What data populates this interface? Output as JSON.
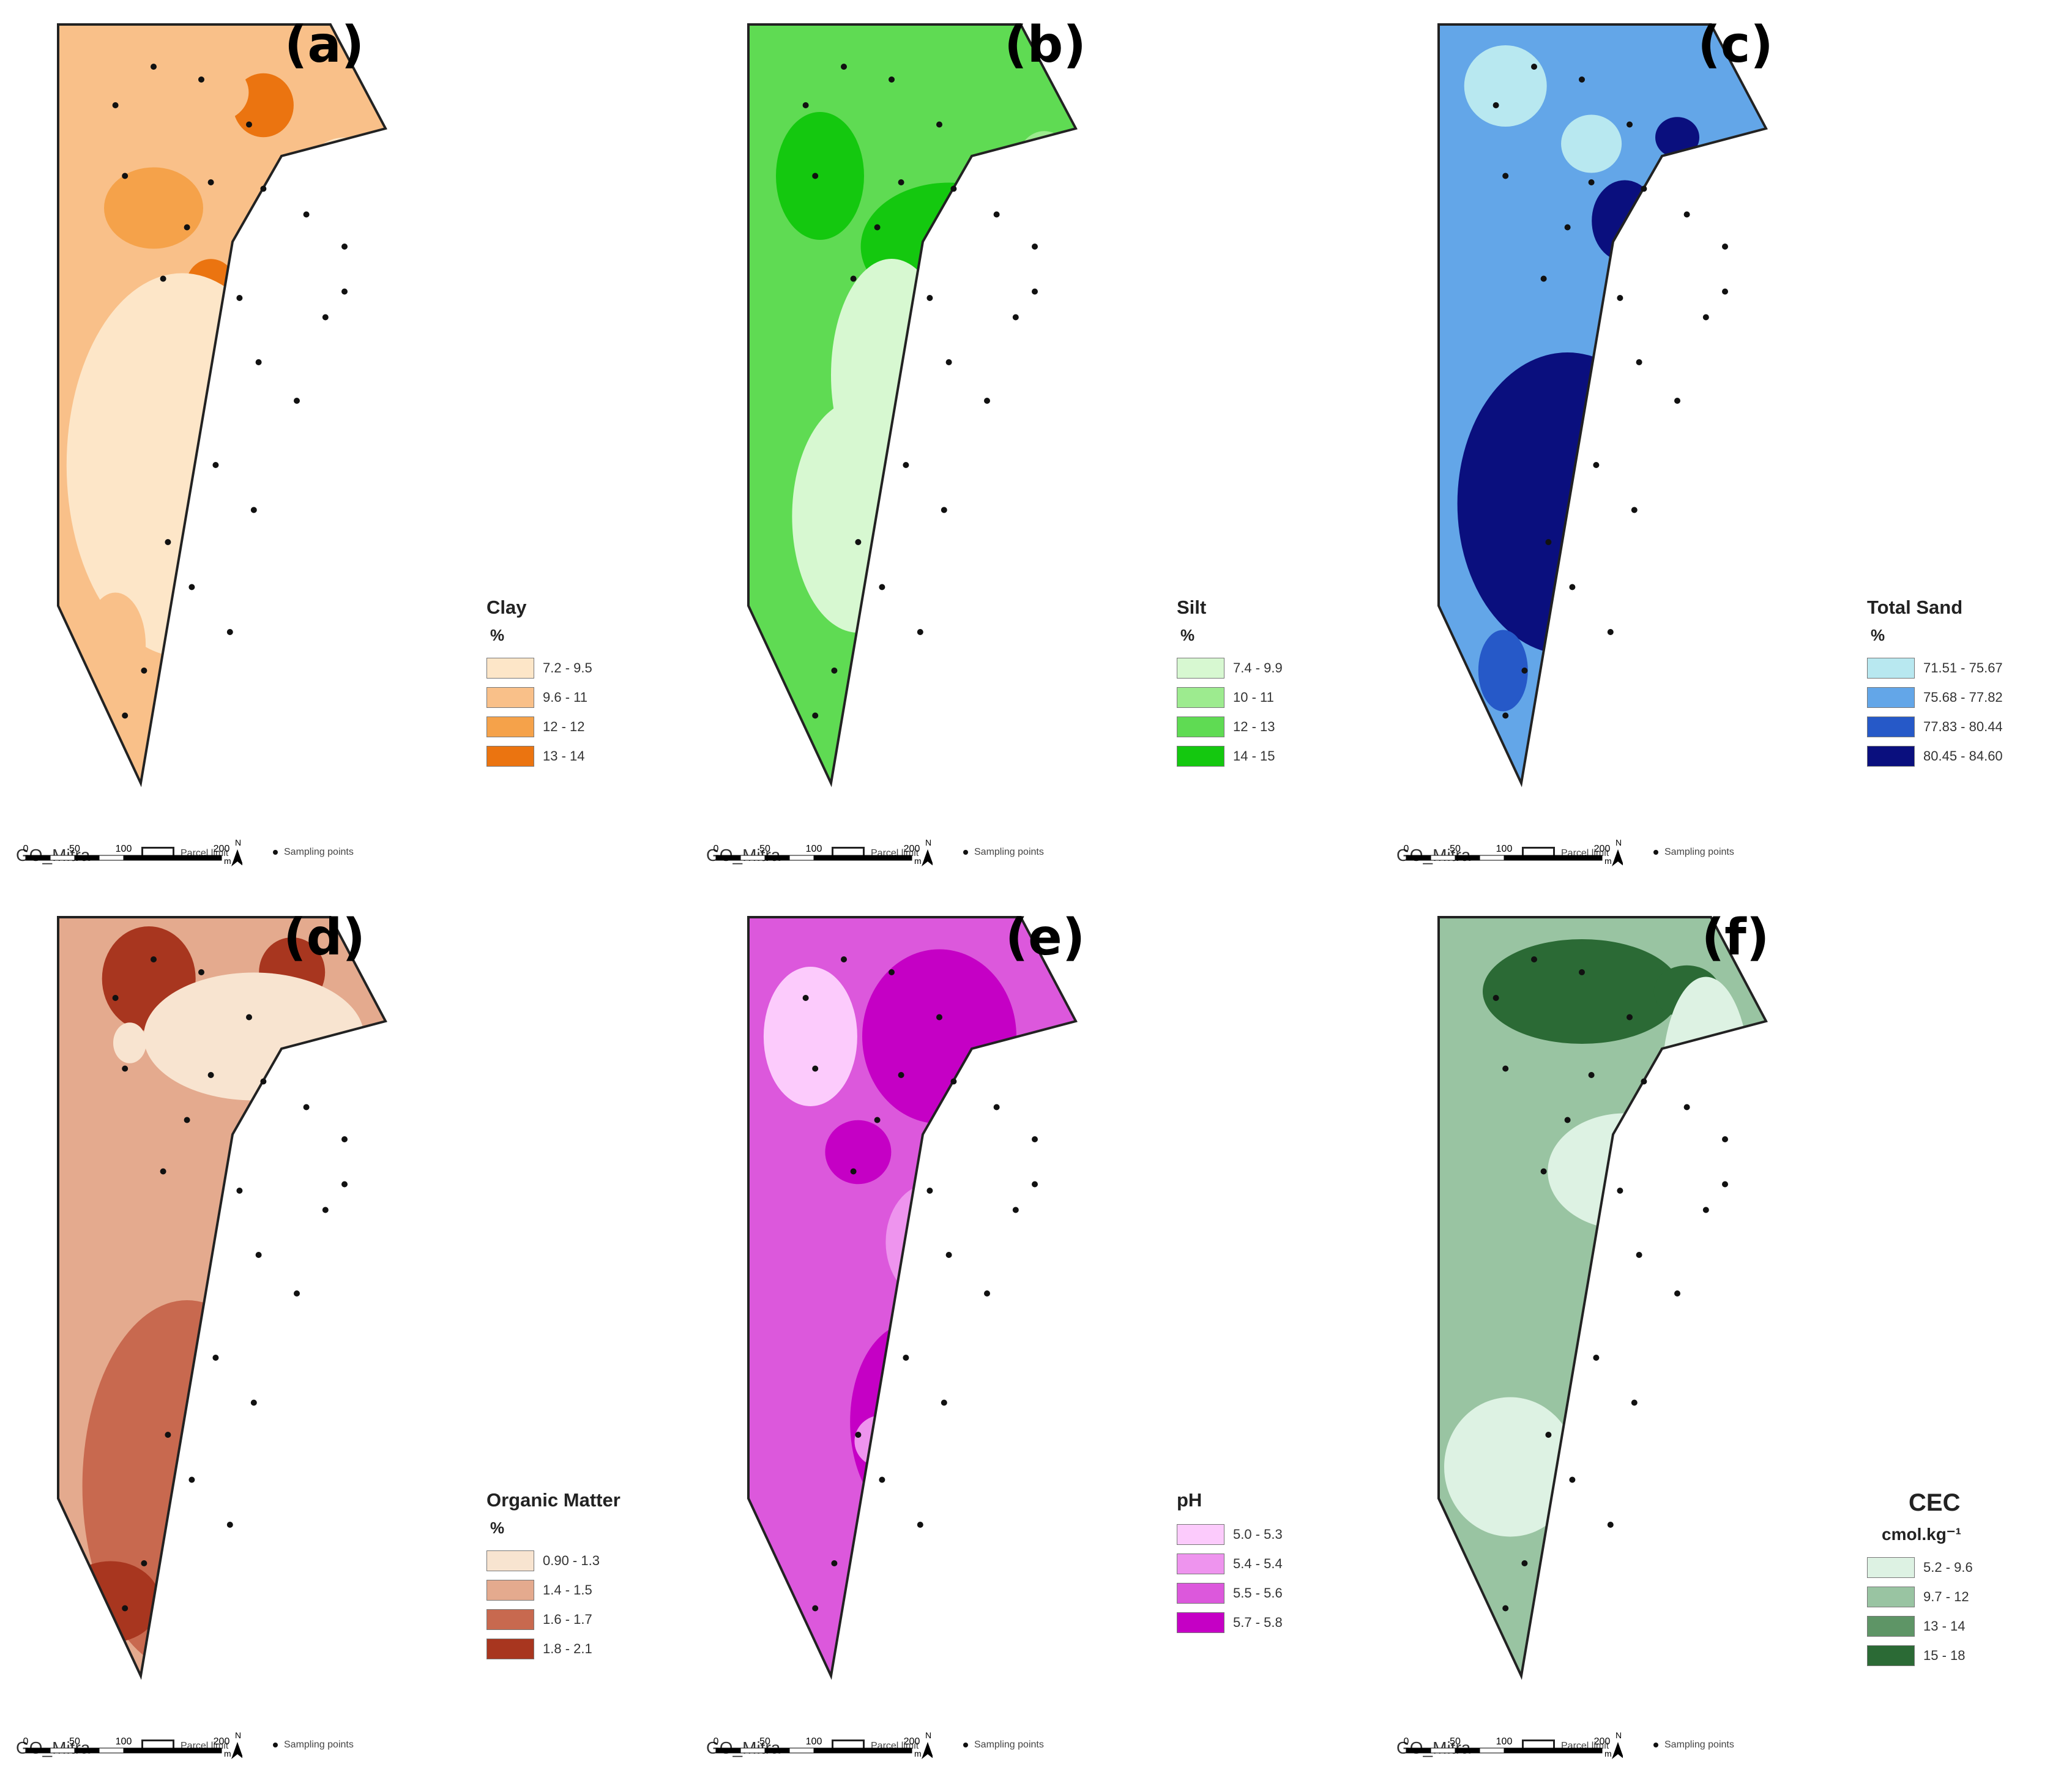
{
  "figure": {
    "panels": [
      {
        "id": "a",
        "label": "(a)",
        "legend": {
          "title": "Clay",
          "unit": "%",
          "classes": [
            {
              "label": "7.2 - 9.5",
              "color": "#FDE6C8"
            },
            {
              "label": "9.6 - 11",
              "color": "#F9C089"
            },
            {
              "label": "12 - 12",
              "color": "#F5A24A"
            },
            {
              "label": "13 - 14",
              "color": "#EB7410"
            }
          ]
        }
      },
      {
        "id": "b",
        "label": "(b)",
        "legend": {
          "title": "Silt",
          "unit": "%",
          "classes": [
            {
              "label": "7.4 - 9.9",
              "color": "#D7F8D1"
            },
            {
              "label": "10 - 11",
              "color": "#9DEB8F"
            },
            {
              "label": "12 - 13",
              "color": "#5FDB53"
            },
            {
              "label": "14 - 15",
              "color": "#14C80F"
            }
          ]
        }
      },
      {
        "id": "c",
        "label": "(c)",
        "legend": {
          "title": "Total Sand",
          "unit": "%",
          "classes": [
            {
              "label": "71.51 - 75.67",
              "color": "#B8E8F0"
            },
            {
              "label": "75.68 - 77.82",
              "color": "#63A6E8"
            },
            {
              "label": "77.83 - 80.44",
              "color": "#2659C8"
            },
            {
              "label": "80.45 - 84.60",
              "color": "#0A0F7E"
            }
          ]
        }
      },
      {
        "id": "d",
        "label": "(d)",
        "legend": {
          "title": "Organic Matter",
          "unit": "%",
          "classes": [
            {
              "label": "0.90 - 1.3",
              "color": "#F8E4D0"
            },
            {
              "label": "1.4 - 1.5",
              "color": "#E4AA8E"
            },
            {
              "label": "1.6 - 1.7",
              "color": "#C8694F"
            },
            {
              "label": "1.8 - 2.1",
              "color": "#A8361F"
            }
          ]
        }
      },
      {
        "id": "e",
        "label": "(e)",
        "legend": {
          "title": "pH",
          "unit": "",
          "classes": [
            {
              "label": "5.0 - 5.3",
              "color": "#FCCBFC"
            },
            {
              "label": "5.4 - 5.4",
              "color": "#EE94EE"
            },
            {
              "label": "5.5 - 5.6",
              "color": "#DC58DC"
            },
            {
              "label": "5.7 - 5.8",
              "color": "#C500C5"
            }
          ]
        }
      },
      {
        "id": "f",
        "label": "(f)",
        "legend": {
          "title": "CEC",
          "unit": "cmol.kg⁻¹",
          "classes": [
            {
              "label": "5.2 - 9.6",
              "color": "#DDF2E3"
            },
            {
              "label": "9.7 - 12",
              "color": "#99C4A2"
            },
            {
              "label": "13 - 14",
              "color": "#5E9566"
            },
            {
              "label": "15 - 18",
              "color": "#2B6A35"
            }
          ]
        }
      }
    ],
    "footer": {
      "region": "GO_Mitra",
      "parcel_label": "Parcel limit",
      "sampling_label": "Sampling points",
      "scale_ticks": [
        "0",
        "50",
        "100",
        "200"
      ],
      "scale_unit": "m",
      "north": "N"
    }
  }
}
